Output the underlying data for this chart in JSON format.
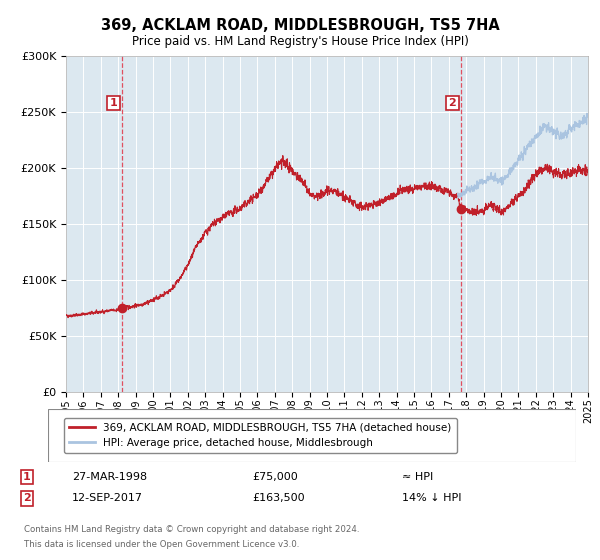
{
  "title": "369, ACKLAM ROAD, MIDDLESBROUGH, TS5 7HA",
  "subtitle": "Price paid vs. HM Land Registry's House Price Index (HPI)",
  "sale1_date": "27-MAR-1998",
  "sale1_price": 75000,
  "sale1_label": "≈ HPI",
  "sale2_date": "12-SEP-2017",
  "sale2_price": 163500,
  "sale2_label": "14% ↓ HPI",
  "sale1_year": 1998.23,
  "sale2_year": 2017.71,
  "hpi_color": "#aac4e0",
  "red_line_color": "#c0202a",
  "dashed_line_color": "#e05060",
  "plot_bg_color": "#dce8f0",
  "legend_label1": "369, ACKLAM ROAD, MIDDLESBROUGH, TS5 7HA (detached house)",
  "legend_label2": "HPI: Average price, detached house, Middlesbrough",
  "footer1": "Contains HM Land Registry data © Crown copyright and database right 2024.",
  "footer2": "This data is licensed under the Open Government Licence v3.0.",
  "xmin": 1995,
  "xmax": 2025,
  "ymin": 0,
  "ymax": 300000,
  "yticks": [
    0,
    50000,
    100000,
    150000,
    200000,
    250000,
    300000
  ],
  "ytick_labels": [
    "£0",
    "£50K",
    "£100K",
    "£150K",
    "£200K",
    "£250K",
    "£300K"
  ]
}
